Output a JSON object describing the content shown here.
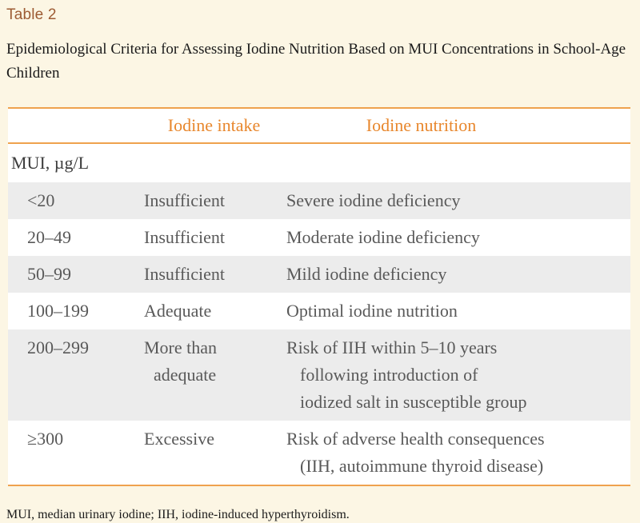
{
  "page": {
    "table_label": "Table 2",
    "caption": "Epidemiological Criteria for Assessing Iodine Nutrition Based on MUI Concentrations in School-Age Children",
    "footnote": "MUI, median urinary iodine; IIH, iodine-induced hyperthyroidism."
  },
  "table": {
    "columns": {
      "intake": "Iodine intake",
      "nutrition": "Iodine nutrition"
    },
    "unit_row_label": "MUI, µg/L",
    "rows": [
      {
        "mui": "<20",
        "intake": "Insufficient",
        "nutrition": "Severe iodine deficiency"
      },
      {
        "mui": "20–49",
        "intake": "Insufficient",
        "nutrition": "Moderate iodine deficiency"
      },
      {
        "mui": "50–99",
        "intake": "Insufficient",
        "nutrition": "Mild iodine deficiency"
      },
      {
        "mui": "100–199",
        "intake": "Adequate",
        "nutrition": "Optimal iodine nutrition"
      },
      {
        "mui": "200–299",
        "intake_lines": [
          "More than",
          "adequate"
        ],
        "nutrition_lines": [
          "Risk of IIH within 5–10 years",
          "following introduction of",
          "iodized salt in susceptible group"
        ]
      },
      {
        "mui": "≥300",
        "intake": "Excessive",
        "nutrition_lines": [
          "Risk of adverse health consequences",
          "(IIH, autoimmune thyroid disease)"
        ]
      }
    ]
  },
  "colors": {
    "accent": "#efa24e",
    "header-text": "#e8872d",
    "label-brown": "#9d5b33",
    "row-gray": "#ececec",
    "page-bg": "#fcf6e4",
    "body-text": "#595959",
    "dark-text": "#1a1a1a"
  }
}
